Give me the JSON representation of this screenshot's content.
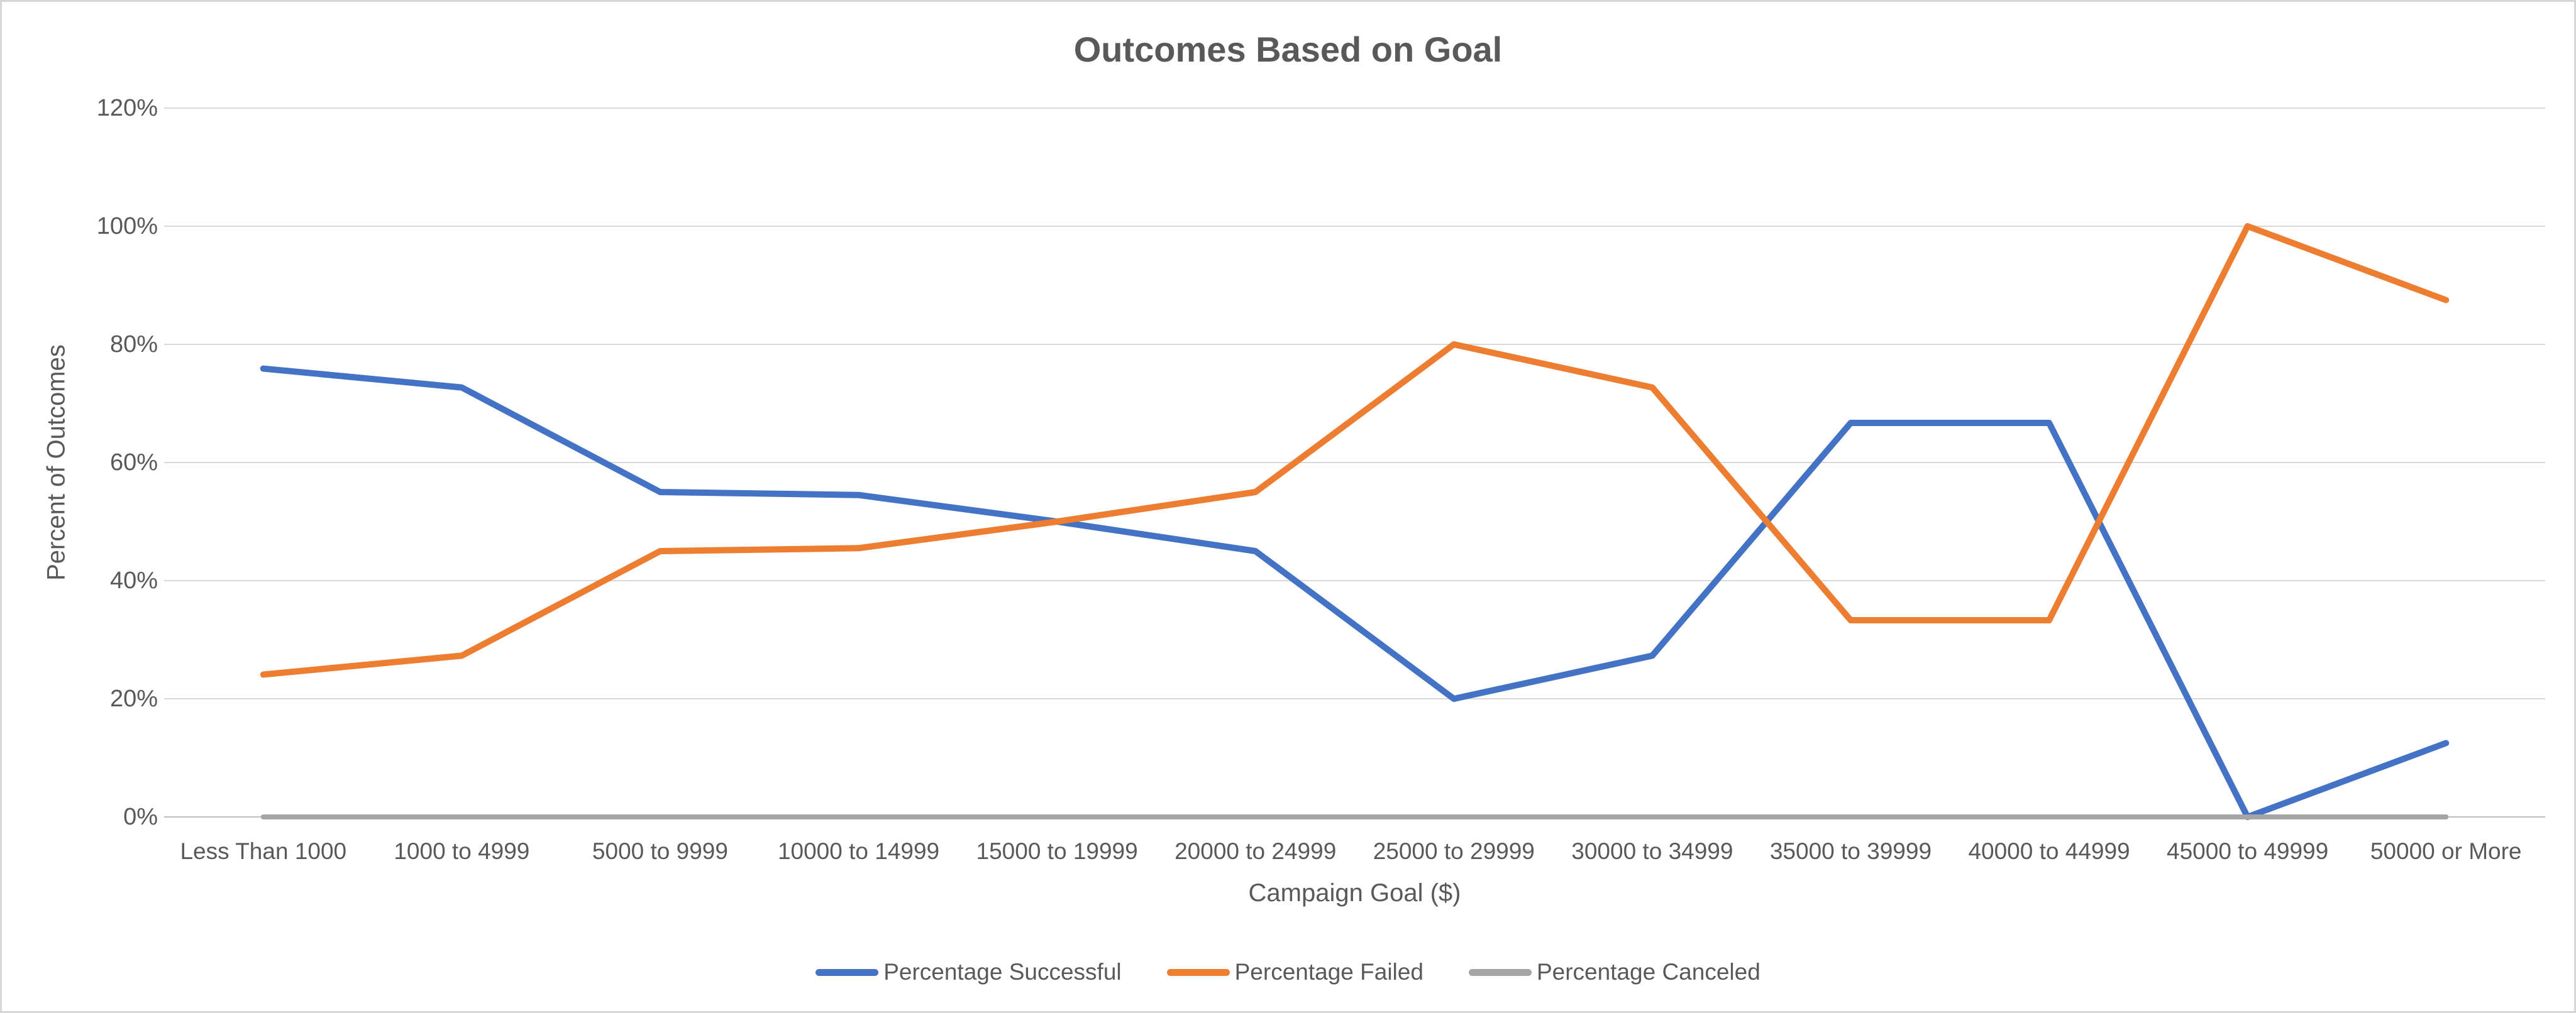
{
  "title": "Outcomes Based on Goal",
  "axes": {
    "x_title": "Campaign Goal ($)",
    "y_title": "Percent of Outcomes"
  },
  "colors": {
    "title_text": "#595959",
    "axis_text": "#595959",
    "gridline": "#d9d9d9",
    "axis_line": "#bfbfbf",
    "canvas_border": "#d6d6d6",
    "series_successful": "#4472c4",
    "series_failed": "#ed7d31",
    "series_canceled": "#a5a5a5"
  },
  "chart_data": {
    "type": "line",
    "title": "Outcomes Based on Goal",
    "xlabel": "Campaign Goal ($)",
    "ylabel": "Percent of Outcomes",
    "ylim": [
      0,
      120
    ],
    "grid": true,
    "legend_position": "bottom",
    "y_ticks": [
      "0%",
      "20%",
      "40%",
      "60%",
      "80%",
      "100%",
      "120%"
    ],
    "y_tick_values": [
      0,
      20,
      40,
      60,
      80,
      100,
      120
    ],
    "categories": [
      "Less Than 1000",
      "1000 to 4999",
      "5000 to 9999",
      "10000 to 14999",
      "15000 to 19999",
      "20000 to 24999",
      "25000 to 29999",
      "30000 to 34999",
      "35000 to 39999",
      "40000 to 44999",
      "45000 to 49999",
      "50000 or More"
    ],
    "series": [
      {
        "name": "Percentage Successful",
        "color": "#4472c4",
        "line_width": 10,
        "values": [
          75.9,
          72.7,
          55,
          54.5,
          50,
          45,
          20,
          27.3,
          66.7,
          66.7,
          0,
          12.5
        ]
      },
      {
        "name": "Percentage Failed",
        "color": "#ed7d31",
        "line_width": 10,
        "values": [
          24.1,
          27.3,
          45,
          45.5,
          50,
          55,
          80,
          72.7,
          33.3,
          33.3,
          100,
          87.5
        ]
      },
      {
        "name": "Percentage Canceled",
        "color": "#a5a5a5",
        "line_width": 8,
        "values": [
          0,
          0,
          0,
          0,
          0,
          0,
          0,
          0,
          0,
          0,
          0,
          0
        ]
      }
    ]
  }
}
